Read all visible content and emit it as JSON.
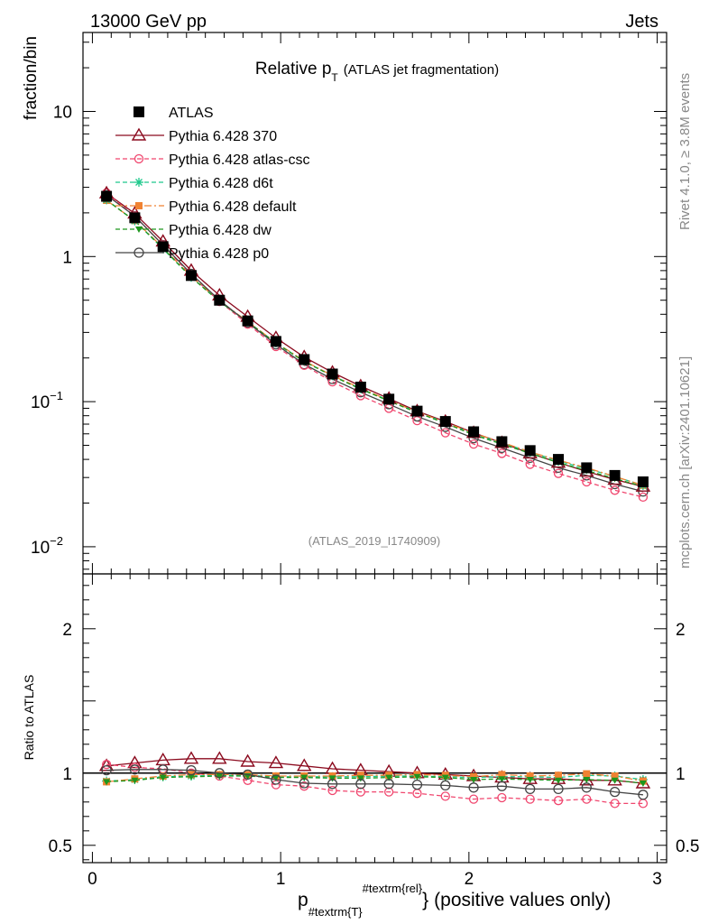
{
  "header": {
    "left": "13000 GeV pp",
    "right": "Jets"
  },
  "side_labels": {
    "rivet": "Rivet 4.1.0, ≥ 3.8M events",
    "mcplots": "mcplots.cern.ch [arXiv:2401.10621]"
  },
  "colors": {
    "atlas": "#000000",
    "p370": "#8b0a1e",
    "atlas_csc": "#f0466e",
    "d6t": "#1ec88c",
    "default": "#f08232",
    "dw": "#1e961e",
    "p0": "#444444",
    "refline": "#000000"
  },
  "chart_data": {
    "type": "line",
    "title_main": "Relative p",
    "title_sub": "T",
    "title_rest": "(ATLAS jet fragmentation)",
    "analysis_tag": "(ATLAS_2019_I1740909)",
    "ylabel": "fraction/bin",
    "ratio_ylabel": "Ratio to ATLAS",
    "xlabel_main": "p",
    "xlabel_sub": "#textrm{T}",
    "xlabel_sup": "#textrm{rel}",
    "xlabel_brace": "}",
    "xlabel_rest": "(positive values only)",
    "xlim": [
      -0.05,
      3.05
    ],
    "ylim_log": [
      0.0065,
      35
    ],
    "ratio_ylim": [
      0.38,
      2.38
    ],
    "x_ticks": [
      "0",
      "1",
      "2",
      "3"
    ],
    "y_ticks": [
      {
        "base": "10",
        "exp": "−2",
        "value": 0.01
      },
      {
        "base": "10",
        "exp": "−1",
        "value": 0.1
      },
      {
        "base": "1",
        "exp": "",
        "value": 1
      },
      {
        "base": "10",
        "exp": "",
        "value": 10
      }
    ],
    "ratio_ticks": [
      "0.5",
      "1",
      "2"
    ],
    "x": [
      0.075,
      0.225,
      0.375,
      0.525,
      0.675,
      0.825,
      0.975,
      1.125,
      1.275,
      1.425,
      1.575,
      1.725,
      1.875,
      2.025,
      2.175,
      2.325,
      2.475,
      2.625,
      2.775,
      2.925
    ],
    "series": [
      {
        "name": "ATLAS",
        "key": "atlas",
        "marker": "square",
        "dash": "",
        "values": [
          2.6,
          1.85,
          1.17,
          0.74,
          0.5,
          0.36,
          0.26,
          0.195,
          0.155,
          0.126,
          0.104,
          0.086,
          0.073,
          0.062,
          0.053,
          0.046,
          0.04,
          0.035,
          0.031,
          0.028
        ]
      },
      {
        "name": "Pythia 6.428 370",
        "key": "p370",
        "marker": "triangle",
        "dash": "",
        "values": [
          2.73,
          1.98,
          1.27,
          0.8,
          0.54,
          0.385,
          0.275,
          0.203,
          0.159,
          0.128,
          0.105,
          0.086,
          0.073,
          0.061,
          0.052,
          0.044,
          0.038,
          0.033,
          0.029,
          0.026
        ]
      },
      {
        "name": "Pythia 6.428 atlas-csc",
        "key": "atlas_csc",
        "marker": "circle",
        "dash": "5,3",
        "values": [
          2.74,
          1.9,
          1.2,
          0.74,
          0.49,
          0.342,
          0.24,
          0.178,
          0.137,
          0.11,
          0.09,
          0.074,
          0.061,
          0.051,
          0.044,
          0.037,
          0.032,
          0.028,
          0.0245,
          0.022
        ]
      },
      {
        "name": "Pythia 6.428 d6t",
        "key": "d6t",
        "marker": "star",
        "dash": "5,3",
        "values": [
          2.46,
          1.76,
          1.13,
          0.72,
          0.49,
          0.355,
          0.254,
          0.19,
          0.151,
          0.123,
          0.102,
          0.085,
          0.072,
          0.06,
          0.052,
          0.045,
          0.039,
          0.0345,
          0.0305,
          0.0265
        ]
      },
      {
        "name": "Pythia 6.428 default",
        "key": "default",
        "marker": "smallsquare",
        "dash": "8,3,2,3",
        "values": [
          2.44,
          1.77,
          1.15,
          0.73,
          0.495,
          0.356,
          0.255,
          0.191,
          0.151,
          0.124,
          0.102,
          0.085,
          0.072,
          0.0605,
          0.0525,
          0.045,
          0.0395,
          0.035,
          0.0305,
          0.0265
        ]
      },
      {
        "name": "Pythia 6.428 dw",
        "key": "dw",
        "marker": "triangledown",
        "dash": "5,3",
        "values": [
          2.45,
          1.76,
          1.14,
          0.72,
          0.49,
          0.354,
          0.253,
          0.189,
          0.15,
          0.122,
          0.101,
          0.084,
          0.071,
          0.059,
          0.051,
          0.044,
          0.038,
          0.0335,
          0.0295,
          0.026
        ]
      },
      {
        "name": "Pythia 6.428 p0",
        "key": "p0",
        "marker": "opencircle",
        "dash": "",
        "values": [
          2.65,
          1.9,
          1.2,
          0.76,
          0.5,
          0.35,
          0.248,
          0.181,
          0.143,
          0.116,
          0.096,
          0.079,
          0.067,
          0.056,
          0.048,
          0.041,
          0.035,
          0.031,
          0.027,
          0.024
        ]
      }
    ],
    "ratio_series": [
      {
        "key": "p370",
        "values": [
          1.05,
          1.07,
          1.09,
          1.1,
          1.1,
          1.08,
          1.07,
          1.05,
          1.03,
          1.02,
          1.01,
          1.0,
          0.99,
          0.98,
          0.97,
          0.96,
          0.96,
          0.95,
          0.95,
          0.93
        ]
      },
      {
        "key": "atlas_csc",
        "values": [
          1.06,
          1.04,
          1.03,
          1.0,
          0.98,
          0.95,
          0.92,
          0.91,
          0.88,
          0.87,
          0.87,
          0.86,
          0.84,
          0.82,
          0.83,
          0.82,
          0.81,
          0.82,
          0.79,
          0.79
        ]
      },
      {
        "key": "d6t",
        "values": [
          0.945,
          0.955,
          0.975,
          0.98,
          0.985,
          0.985,
          0.975,
          0.975,
          0.975,
          0.975,
          0.98,
          0.98,
          0.975,
          0.97,
          0.975,
          0.975,
          0.97,
          0.985,
          0.98,
          0.955
        ]
      },
      {
        "key": "default",
        "values": [
          0.94,
          0.96,
          0.98,
          0.99,
          0.99,
          0.99,
          0.98,
          0.98,
          0.98,
          0.985,
          0.985,
          0.99,
          0.985,
          0.975,
          0.99,
          0.98,
          0.985,
          0.995,
          0.98,
          0.945
        ]
      },
      {
        "key": "dw",
        "values": [
          0.94,
          0.95,
          0.97,
          0.975,
          0.98,
          0.98,
          0.97,
          0.97,
          0.965,
          0.965,
          0.97,
          0.975,
          0.97,
          0.955,
          0.96,
          0.955,
          0.95,
          0.955,
          0.95,
          0.93
        ]
      },
      {
        "key": "p0",
        "values": [
          1.02,
          1.025,
          1.025,
          1.02,
          1.0,
          0.99,
          0.955,
          0.93,
          0.925,
          0.925,
          0.925,
          0.92,
          0.915,
          0.9,
          0.91,
          0.89,
          0.89,
          0.9,
          0.87,
          0.85
        ]
      }
    ]
  }
}
